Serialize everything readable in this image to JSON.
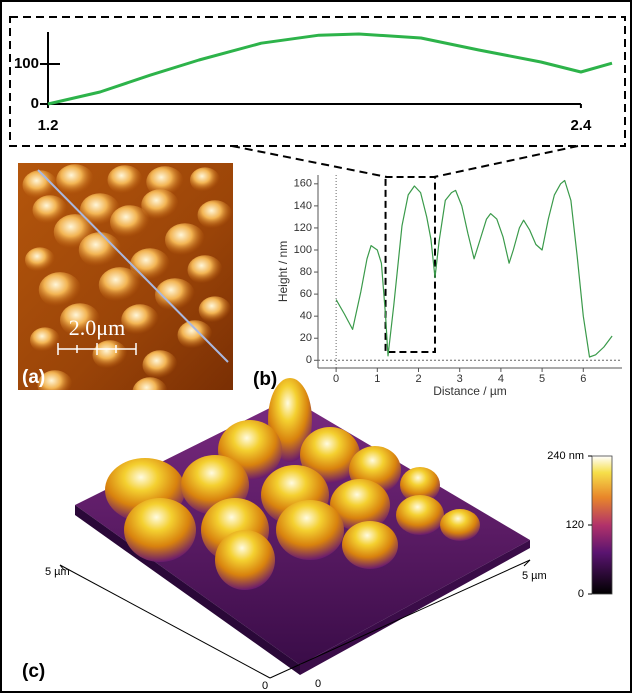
{
  "chart_data": [
    {
      "type": "line",
      "color": "#2db34a",
      "x": [
        1.2,
        1.317,
        1.43,
        1.54,
        1.68,
        1.81,
        1.9,
        2.04,
        2.17,
        2.31,
        2.4,
        2.47
      ],
      "values": [
        0,
        30,
        72,
        110,
        152,
        172,
        175,
        165,
        135,
        105,
        80,
        102
      ],
      "xlim": [
        1.2,
        2.47
      ],
      "ylim": [
        0,
        185
      ],
      "xticks": [
        1.2,
        2.4
      ],
      "yticks": [
        0,
        100
      ]
    },
    {
      "type": "line",
      "color": "#3a9a4a",
      "xlabel": "Distance / µm",
      "ylabel": "Height / nm",
      "x": [
        0,
        0.2,
        0.4,
        0.6,
        0.75,
        0.85,
        1.0,
        1.1,
        1.2,
        1.26,
        1.4,
        1.6,
        1.75,
        1.9,
        2.05,
        2.2,
        2.3,
        2.4,
        2.5,
        2.65,
        2.8,
        2.9,
        3.05,
        3.2,
        3.35,
        3.5,
        3.65,
        3.75,
        3.9,
        4.05,
        4.2,
        4.3,
        4.45,
        4.55,
        4.7,
        4.85,
        5.0,
        5.15,
        5.3,
        5.45,
        5.55,
        5.7,
        5.85,
        6.0,
        6.15,
        6.3,
        6.5,
        6.7
      ],
      "values": [
        55,
        42,
        28,
        62,
        92,
        104,
        100,
        88,
        40,
        4,
        50,
        122,
        150,
        158,
        152,
        130,
        110,
        75,
        108,
        145,
        152,
        154,
        140,
        115,
        92,
        110,
        128,
        133,
        128,
        112,
        88,
        100,
        120,
        127,
        118,
        105,
        100,
        128,
        150,
        160,
        163,
        145,
        95,
        40,
        3,
        5,
        12,
        22
      ],
      "xlim": [
        -0.44,
        6.94
      ],
      "ylim": [
        -7,
        168
      ],
      "xticks": [
        0,
        1,
        2,
        3,
        4,
        5,
        6
      ],
      "yticks": [
        0,
        20,
        40,
        60,
        80,
        100,
        120,
        140,
        160
      ]
    }
  ],
  "panels": {
    "a": "(a)",
    "b": "(b)",
    "c": "(c)"
  },
  "scale_bar": "2.0μm",
  "surface_axes": {
    "left": "5 µm",
    "right": "5 µm",
    "origin_left": "0",
    "origin_right": "0"
  },
  "colorbar": {
    "lim": [
      0,
      240
    ],
    "ticks": [
      {
        "value": 240,
        "label": "240 nm"
      },
      120,
      0
    ]
  }
}
